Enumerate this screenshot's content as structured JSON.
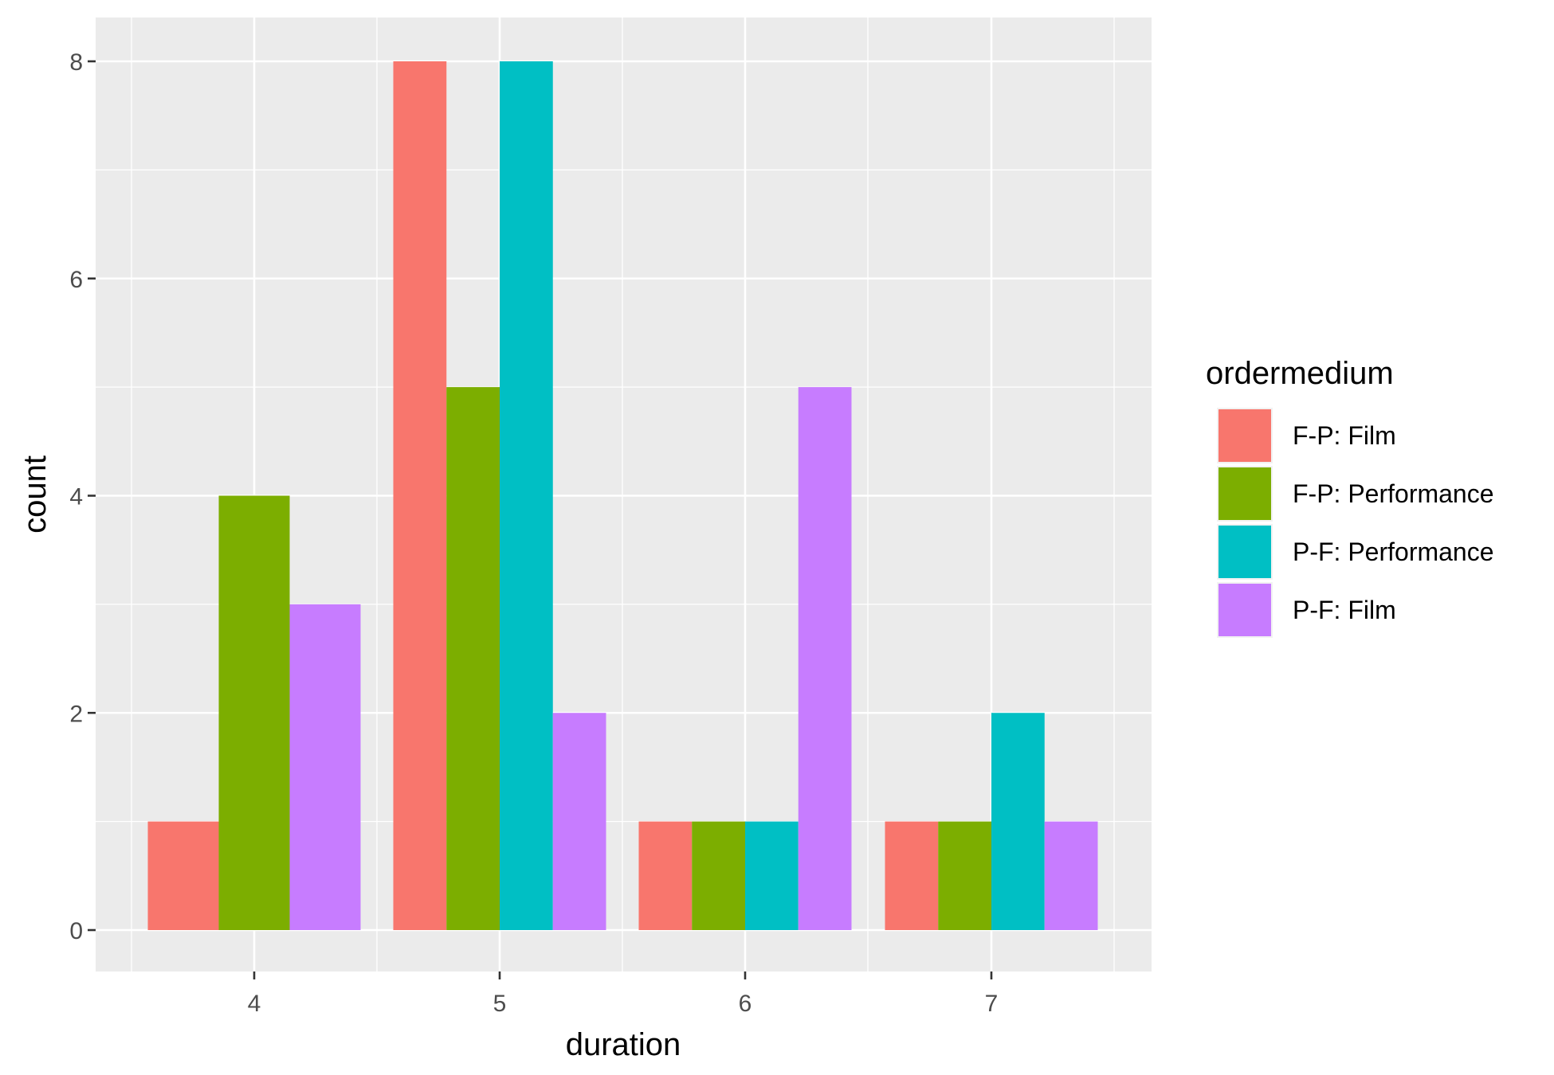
{
  "chart_data": {
    "type": "bar",
    "xlabel": "duration",
    "ylabel": "count",
    "categories": [
      "4",
      "5",
      "6",
      "7"
    ],
    "ylim": [
      0,
      8
    ],
    "yticks": [
      "0",
      "2",
      "4",
      "6",
      "8"
    ],
    "grid": true,
    "legend": {
      "title": "ordermedium",
      "position": "right"
    },
    "series": [
      {
        "name": "F-P: Film",
        "color": "#F8766D",
        "values": [
          1,
          8,
          1,
          1
        ]
      },
      {
        "name": "F-P: Performance",
        "color": "#7CAE00",
        "values": [
          4,
          5,
          1,
          1
        ]
      },
      {
        "name": "P-F: Performance",
        "color": "#00BFC4",
        "values": [
          0,
          8,
          1,
          2
        ]
      },
      {
        "name": "P-F: Film",
        "color": "#C77CFF",
        "values": [
          3,
          2,
          5,
          1
        ]
      }
    ]
  }
}
